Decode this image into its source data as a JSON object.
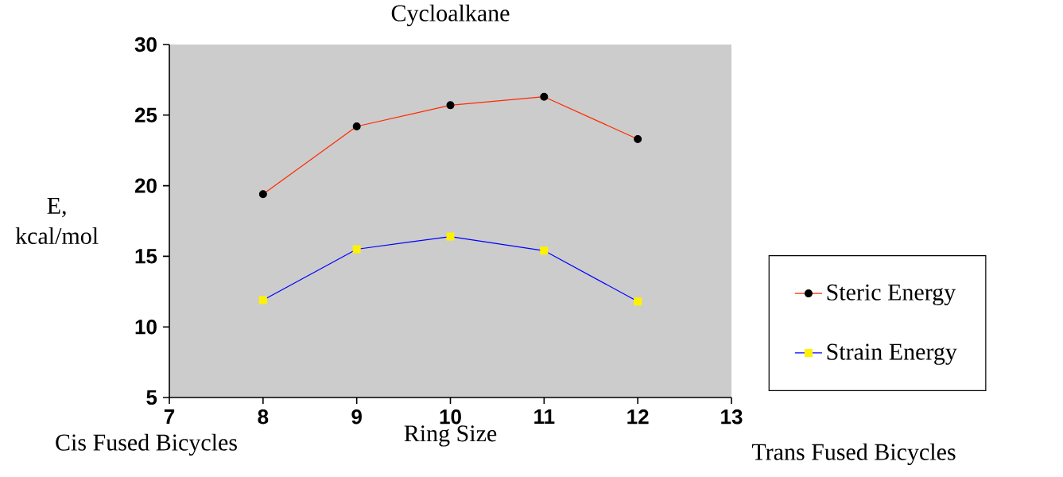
{
  "chart_data": {
    "type": "line",
    "title": "Cycloalkane",
    "xlabel": "Ring Size",
    "ylabel": "E, kcal/mol",
    "x": [
      8,
      9,
      10,
      11,
      12
    ],
    "series": [
      {
        "name": "Steric Energy",
        "color": "#ff2a00",
        "marker": "circle",
        "values": [
          19.4,
          24.2,
          25.7,
          26.3,
          23.3
        ]
      },
      {
        "name": "Strain Energy",
        "color": "#0000ff",
        "marker": "square",
        "values": [
          11.9,
          15.5,
          16.4,
          15.4,
          11.8
        ]
      }
    ],
    "xlim": [
      7,
      13
    ],
    "xticks": [
      7,
      8,
      9,
      10,
      11,
      12,
      13
    ],
    "ylim": [
      5,
      30
    ],
    "yticks": [
      5,
      10,
      15,
      20,
      25,
      30
    ],
    "legend": "right",
    "grid": false,
    "line_style": "solid",
    "annotations": [
      "Cis Fused Bicycles",
      "Trans Fused Bicycles"
    ]
  }
}
